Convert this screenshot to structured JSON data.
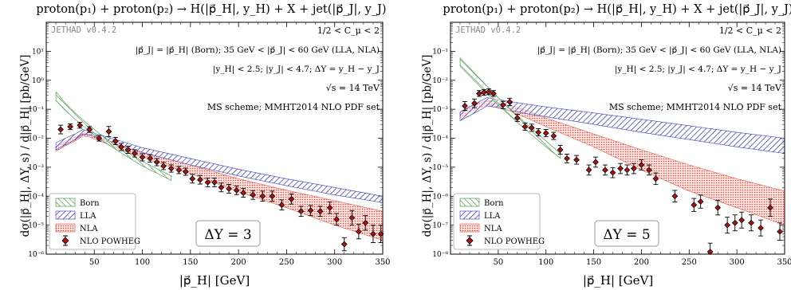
{
  "chart_data": [
    {
      "type": "line",
      "title": "proton(p₁) + proton(p₂) → H(|p⃗_H|, y_H) + X + jet(|p⃗_J|, y_J)",
      "xlabel": "|p⃗_H| [GeV]",
      "ylabel": "dσ(|p⃗_H|, ΔY, s) / d|p⃗_H|  [pb/GeV]",
      "xlim": [
        0,
        350
      ],
      "ylim": [
        1e-06,
        100
      ],
      "yscale": "log",
      "xticks": [
        "50",
        "100",
        "150",
        "200",
        "250",
        "300",
        "350"
      ],
      "yticks": [
        "10⁻⁶",
        "10⁻⁵",
        "10⁻⁴",
        "10⁻³",
        "10⁻²",
        "10⁻¹",
        "10⁰",
        "10¹"
      ],
      "watermark": "JETHAD v0.4.2",
      "annotations": [
        "1/2 < C_μ < 2",
        "|p⃗_J| = |p⃗_H| (Born); 35 GeV < |p⃗_J| < 60 GeV (LLA, NLA)",
        "|y_H| < 2.5; |y_J| < 4.7; ΔY = y_H − y_J",
        "√s = 14 TeV",
        "MS scheme; MMHT2014 NLO PDF set"
      ],
      "panel_label": "ΔY = 3",
      "legend": [
        "Born",
        "LLA",
        "NLA",
        "NLO POWHEG"
      ],
      "legend_position": "bottom-left",
      "series": [
        {
          "name": "Born",
          "color": "#2e8b2e",
          "x": [
            10,
            20,
            30,
            40,
            50,
            60,
            80,
            100,
            130
          ],
          "lo": [
            0.2,
            0.09,
            0.045,
            0.024,
            0.013,
            0.0075,
            0.0028,
            0.0011,
            0.00035
          ],
          "hi": [
            0.4,
            0.16,
            0.075,
            0.038,
            0.02,
            0.011,
            0.004,
            0.0016,
            0.0005
          ]
        },
        {
          "name": "LLA",
          "color": "#2b2bb8",
          "x": [
            10,
            20,
            30,
            38,
            45,
            60,
            80,
            100,
            150,
            200,
            250,
            300,
            350
          ],
          "lo": [
            0.004,
            0.006,
            0.009,
            0.014,
            0.013,
            0.0085,
            0.005,
            0.0032,
            0.0012,
            0.0005,
            0.00023,
            0.00011,
            6e-05
          ],
          "hi": [
            0.007,
            0.01,
            0.014,
            0.02,
            0.017,
            0.012,
            0.0075,
            0.0047,
            0.002,
            0.00085,
            0.0004,
            0.0002,
            0.0001
          ]
        },
        {
          "name": "NLA",
          "color": "#e5483c",
          "x": [
            10,
            20,
            30,
            38,
            45,
            60,
            80,
            100,
            150,
            200,
            250,
            300,
            350
          ],
          "lo": [
            0.0035,
            0.0055,
            0.008,
            0.012,
            0.011,
            0.007,
            0.0038,
            0.0022,
            0.0006,
            0.00014,
            4e-05,
            1e-05,
            3e-06
          ],
          "hi": [
            0.005,
            0.008,
            0.011,
            0.015,
            0.014,
            0.0095,
            0.0055,
            0.0033,
            0.0012,
            0.0004,
            0.00016,
            7e-05,
            3e-05
          ]
        },
        {
          "name": "NLO POWHEG",
          "color": "#b01010",
          "x": [
            15,
            25,
            35,
            45,
            55,
            65,
            72,
            78,
            85,
            92,
            100,
            108,
            115,
            122,
            130,
            138,
            145,
            152,
            160,
            168,
            175,
            182,
            190,
            198,
            205,
            215,
            225,
            235,
            245,
            255,
            265,
            275,
            285,
            295,
            302,
            310,
            318,
            325,
            332,
            340,
            348
          ],
          "y": [
            0.02,
            0.025,
            0.028,
            0.02,
            0.01,
            0.017,
            0.008,
            0.005,
            0.004,
            0.003,
            0.0022,
            0.002,
            0.0015,
            0.0011,
            0.0009,
            0.0008,
            0.0007,
            0.0004,
            0.00037,
            0.0003,
            0.0003,
            0.0002,
            0.00018,
            0.00016,
            0.00013,
            0.00011,
            0.0001,
            0.0001,
            5e-05,
            8e-05,
            3e-05,
            3.2e-05,
            3e-05,
            4e-05,
            1.6e-05,
            2.2e-06,
            1.8e-05,
            6e-06,
            1.2e-05,
            5e-06,
            5e-06
          ],
          "err": [
            0.3,
            0.2,
            0.2,
            0.2,
            0.2,
            0.35,
            0.25,
            0.25,
            0.25,
            0.25,
            0.25,
            0.25,
            0.25,
            0.25,
            0.25,
            0.25,
            0.25,
            0.3,
            0.3,
            0.3,
            0.3,
            0.3,
            0.3,
            0.3,
            0.3,
            0.3,
            0.35,
            0.35,
            0.35,
            0.35,
            0.35,
            0.35,
            0.35,
            0.4,
            0.4,
            0.45,
            0.5,
            0.5,
            0.5,
            0.6,
            0.6
          ]
        }
      ]
    },
    {
      "type": "line",
      "title": "proton(p₁) + proton(p₂) → H(|p⃗_H|, y_H) + X + jet(|p⃗_J|, y_J)",
      "xlabel": "|p⃗_H| [GeV]",
      "ylabel": "dσ(|p⃗_H|, ΔY, s) / d|p⃗_H|  [pb/GeV]",
      "xlim": [
        0,
        350
      ],
      "ylim": [
        1e-08,
        1
      ],
      "yscale": "log",
      "xticks": [
        "50",
        "100",
        "150",
        "200",
        "250",
        "300",
        "350"
      ],
      "yticks": [
        "10⁻⁸",
        "10⁻⁷",
        "10⁻⁶",
        "10⁻⁵",
        "10⁻⁴",
        "10⁻³",
        "10⁻²",
        "10⁻¹"
      ],
      "watermark": "JETHAD v0.4.2",
      "annotations": [
        "1/2 < C_μ < 2",
        "|p⃗_J| = |p⃗_H| (Born); 35 GeV < |p⃗_J| < 60 GeV (LLA, NLA)",
        "|y_H| < 2.5; |y_J| < 4.7; ΔY = y_H − y_J",
        "√s = 14 TeV",
        "MS scheme; MMHT2014 NLO PDF set"
      ],
      "panel_label": "ΔY = 5",
      "legend": [
        "Born",
        "LLA",
        "NLA",
        "NLO POWHEG"
      ],
      "legend_position": "bottom-left",
      "series": [
        {
          "name": "Born",
          "color": "#2e8b2e",
          "x": [
            10,
            20,
            30,
            40,
            50,
            60,
            80,
            100,
            115
          ],
          "lo": [
            0.03,
            0.014,
            0.0065,
            0.003,
            0.0014,
            0.0007,
            0.00018,
            5e-05,
            2e-05
          ],
          "hi": [
            0.06,
            0.027,
            0.012,
            0.0055,
            0.0025,
            0.0012,
            0.0003,
            8e-05,
            3e-05
          ]
        },
        {
          "name": "LLA",
          "color": "#2b2bb8",
          "x": [
            10,
            20,
            30,
            38,
            45,
            60,
            80,
            100,
            150,
            200,
            250,
            300,
            350
          ],
          "lo": [
            0.0004,
            0.0006,
            0.0009,
            0.0013,
            0.0012,
            0.00095,
            0.0007,
            0.00055,
            0.0003,
            0.00016,
            9e-05,
            5e-05,
            3e-05
          ],
          "hi": [
            0.0008,
            0.0012,
            0.0018,
            0.0025,
            0.0023,
            0.0019,
            0.0015,
            0.0012,
            0.00075,
            0.00045,
            0.00027,
            0.00016,
            0.0001
          ]
        },
        {
          "name": "NLA",
          "color": "#e5483c",
          "x": [
            10,
            20,
            30,
            38,
            45,
            60,
            80,
            100,
            150,
            200,
            250,
            300,
            350
          ],
          "lo": [
            0.0005,
            0.0008,
            0.0011,
            0.0014,
            0.0013,
            0.0009,
            0.0005,
            0.00025,
            5e-05,
            8e-06,
            1.5e-06,
            4e-07,
            1e-07
          ],
          "hi": [
            0.0008,
            0.0012,
            0.0016,
            0.002,
            0.0019,
            0.0014,
            0.0009,
            0.0005,
            0.00014,
            4e-05,
            1.2e-05,
            4e-06,
            1.5e-06
          ]
        },
        {
          "name": "NLO POWHEG",
          "color": "#b01010",
          "x": [
            15,
            25,
            30,
            35,
            40,
            45,
            55,
            62,
            70,
            78,
            85,
            92,
            100,
            108,
            115,
            122,
            132,
            145,
            152,
            162,
            170,
            178,
            185,
            192,
            200,
            208,
            215,
            235,
            255,
            262,
            272,
            280,
            290,
            298,
            305,
            315,
            325,
            335,
            345
          ],
          "y": [
            0.0013,
            0.0016,
            0.0035,
            0.0038,
            0.004,
            0.0035,
            0.0014,
            0.0018,
            0.0005,
            0.00025,
            0.00023,
            0.00016,
            0.00015,
            0.00012,
            4e-05,
            2e-05,
            1.8e-05,
            8e-06,
            1.5e-05,
            8e-06,
            6.5e-06,
            9e-06,
            8e-06,
            9e-06,
            1.2e-05,
            8e-06,
            4e-06,
            1e-06,
            5e-07,
            6.5e-07,
            1.2e-08,
            4e-07,
            1e-07,
            1.2e-07,
            1.5e-07,
            1.2e-07,
            8e-08,
            4e-07,
            6e-08
          ],
          "err": [
            0.3,
            0.3,
            0.2,
            0.2,
            0.2,
            0.2,
            0.25,
            0.25,
            0.25,
            0.25,
            0.25,
            0.25,
            0.25,
            0.25,
            0.3,
            0.3,
            0.3,
            0.35,
            0.35,
            0.35,
            0.35,
            0.35,
            0.35,
            0.35,
            0.35,
            0.35,
            0.4,
            0.4,
            0.45,
            0.45,
            0.6,
            0.5,
            0.55,
            0.55,
            0.55,
            0.55,
            0.55,
            0.6,
            0.6
          ]
        }
      ]
    }
  ]
}
